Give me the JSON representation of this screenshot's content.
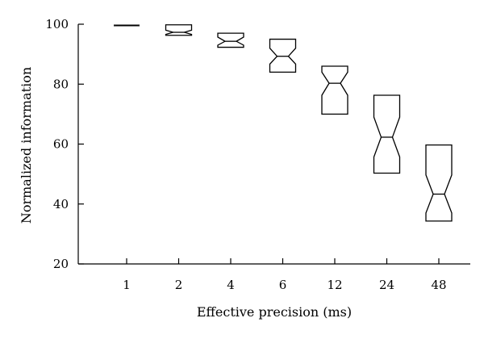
{
  "chart_data": {
    "type": "box",
    "xlabel": "Effective precision (ms)",
    "ylabel": "Normalized information",
    "ylim": [
      20,
      100
    ],
    "yticks": [
      20,
      40,
      60,
      80,
      100
    ],
    "categories": [
      "1",
      "2",
      "4",
      "6",
      "12",
      "24",
      "48"
    ],
    "boxes": [
      {
        "category": "1",
        "q1": 99.5,
        "median": 99.6,
        "q3": 99.7,
        "notch_low": 99.5,
        "notch_high": 99.7
      },
      {
        "category": "2",
        "q1": 96.3,
        "median": 97.3,
        "q3": 99.8,
        "notch_low": 96.6,
        "notch_high": 98.0
      },
      {
        "category": "4",
        "q1": 92.3,
        "median": 94.3,
        "q3": 97.0,
        "notch_low": 93.0,
        "notch_high": 95.7
      },
      {
        "category": "6",
        "q1": 84.0,
        "median": 89.3,
        "q3": 95.0,
        "notch_low": 86.7,
        "notch_high": 92.0
      },
      {
        "category": "12",
        "q1": 70.0,
        "median": 80.3,
        "q3": 86.0,
        "notch_low": 76.3,
        "notch_high": 84.0
      },
      {
        "category": "24",
        "q1": 50.3,
        "median": 62.3,
        "q3": 76.3,
        "notch_low": 55.7,
        "notch_high": 69.0
      },
      {
        "category": "48",
        "q1": 34.3,
        "median": 43.3,
        "q3": 59.7,
        "notch_low": 37.0,
        "notch_high": 49.7
      }
    ],
    "grid": false,
    "legend": "none"
  }
}
